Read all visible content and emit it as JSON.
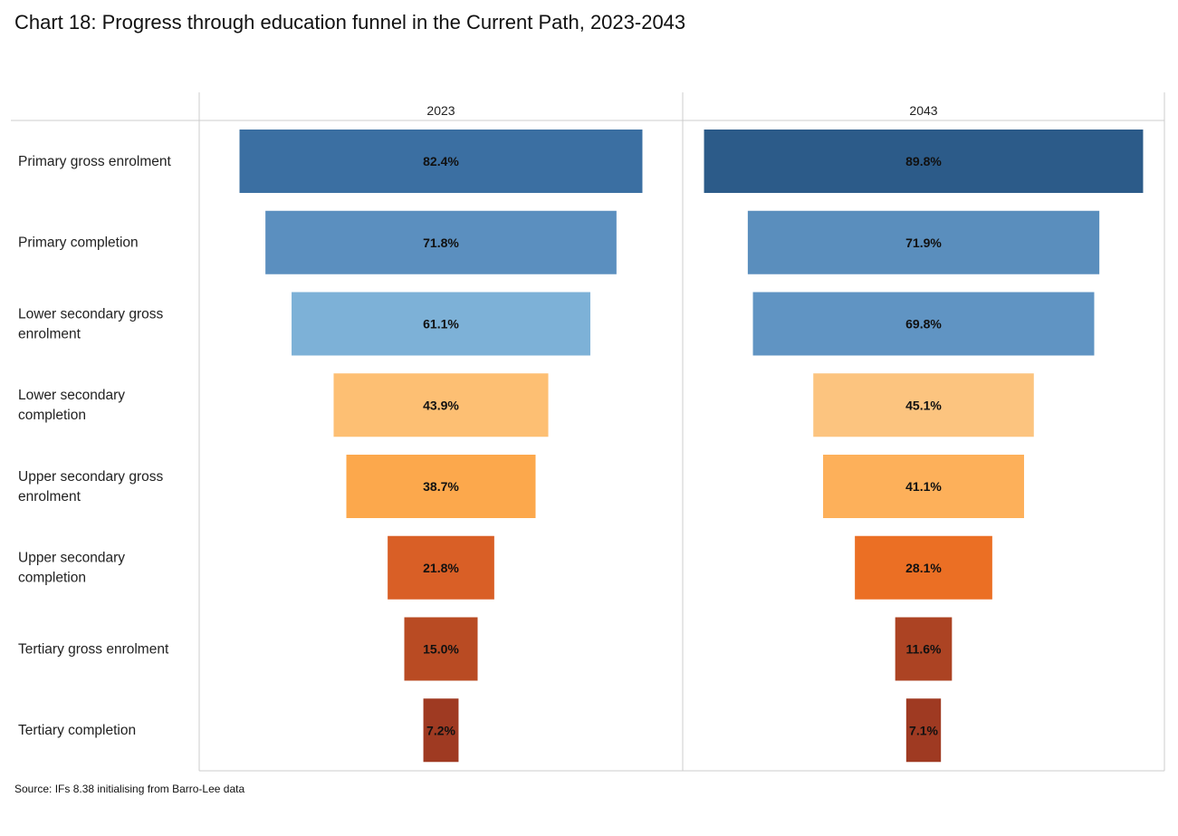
{
  "chart_data": {
    "type": "bar",
    "subtype": "funnel",
    "title": "Chart 18: Progress through education funnel in the Current Path, 2023-2043",
    "source": "Source: IFs 8.38 initialising from Barro-Lee data",
    "categories": [
      "Primary gross enrolment",
      "Primary completion",
      "Lower secondary gross enrolment",
      "Lower secondary completion",
      "Upper secondary gross enrolment",
      "Upper secondary completion",
      "Tertiary gross enrolment",
      "Tertiary completion"
    ],
    "category_lines": [
      [
        "Primary gross enrolment"
      ],
      [
        "Primary completion"
      ],
      [
        "Lower secondary gross",
        "enrolment"
      ],
      [
        "Lower secondary",
        "completion"
      ],
      [
        "Upper secondary gross",
        "enrolment"
      ],
      [
        "Upper secondary",
        "completion"
      ],
      [
        "Tertiary gross enrolment"
      ],
      [
        "Tertiary completion"
      ]
    ],
    "unit": "%",
    "series": [
      {
        "name": "2023",
        "values": [
          82.4,
          71.8,
          61.1,
          43.9,
          38.7,
          21.8,
          15.0,
          7.2
        ],
        "colors": [
          "#3b6fa2",
          "#5b8fbf",
          "#7db1d7",
          "#fdbf73",
          "#fca84c",
          "#d95f26",
          "#b94b23",
          "#9f3a22"
        ]
      },
      {
        "name": "2043",
        "values": [
          89.8,
          71.9,
          69.8,
          45.1,
          41.1,
          28.1,
          11.6,
          7.1
        ],
        "colors": [
          "#2c5b89",
          "#5a8ebd",
          "#6094c3",
          "#fcc47f",
          "#fdb05a",
          "#eb6f24",
          "#ac4323",
          "#9f3a22"
        ]
      }
    ]
  }
}
